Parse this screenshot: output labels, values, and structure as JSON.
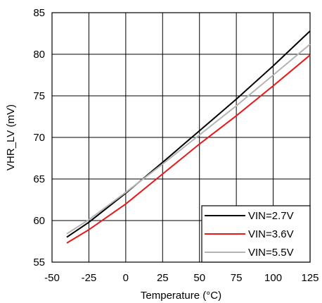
{
  "chart_data": {
    "type": "line",
    "title": "",
    "xlabel": "Temperature (°C)",
    "ylabel": "VHR_LV (mV)",
    "xlim": [
      -50,
      125
    ],
    "ylim": [
      55,
      85
    ],
    "xticks": [
      -50,
      -25,
      0,
      25,
      50,
      75,
      100,
      125
    ],
    "yticks": [
      55,
      60,
      65,
      70,
      75,
      80,
      85
    ],
    "grid": true,
    "legend_position": "bottom-right",
    "series": [
      {
        "name": "VIN=2.7V",
        "color": "#000000",
        "x": [
          -40,
          -25,
          0,
          25,
          50,
          75,
          100,
          125
        ],
        "y": [
          58.0,
          59.8,
          63.3,
          67.0,
          70.8,
          74.6,
          78.6,
          82.8
        ]
      },
      {
        "name": "VIN=3.6V",
        "color": "#e8191b",
        "x": [
          -40,
          -25,
          0,
          25,
          50,
          75,
          100,
          125
        ],
        "y": [
          57.3,
          58.9,
          62.0,
          65.6,
          69.2,
          72.6,
          76.2,
          79.9
        ]
      },
      {
        "name": "VIN=5.5V",
        "color": "#b4b4b4",
        "x": [
          -40,
          -25,
          0,
          25,
          50,
          75,
          100,
          125
        ],
        "y": [
          58.4,
          60.1,
          63.4,
          66.8,
          70.3,
          73.8,
          77.5,
          81.2
        ]
      }
    ]
  }
}
